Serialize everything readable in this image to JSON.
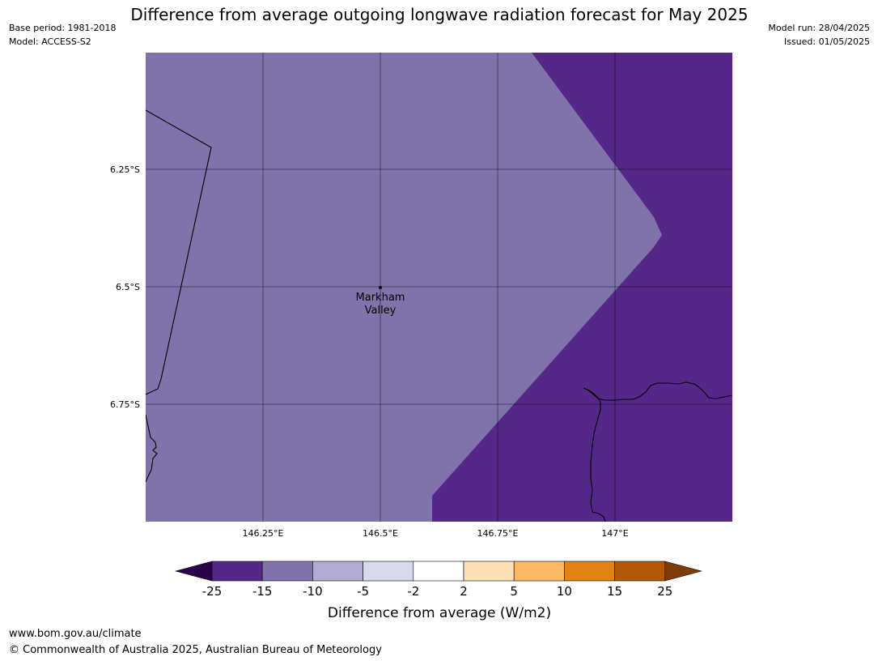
{
  "header": {
    "title": "Difference from average outgoing longwave radiation forecast for May 2025",
    "base_period": "Base period: 1981-2018",
    "model": "Model: ACCESS-S2",
    "model_run": "Model run: 28/04/2025",
    "issued": "Issued: 01/05/2025"
  },
  "map": {
    "lat_labels": [
      "6.25°S",
      "6.5°S",
      "6.75°S"
    ],
    "lon_labels": [
      "146.25°E",
      "146.5°E",
      "146.75°E",
      "147°E"
    ],
    "place": {
      "name_line1": "Markham",
      "name_line2": "Valley",
      "lon": 146.5,
      "lat": -6.5
    },
    "regions": [
      {
        "name": "region-minus10-to-minus15",
        "category": "-15 to -10",
        "color": "#8073ac"
      },
      {
        "name": "region-minus15-to-minus25",
        "category": "-25 to -15",
        "color": "#542788"
      }
    ]
  },
  "colorbar": {
    "label": "Difference from average (W/m2)",
    "ticks": [
      "-25",
      "-15",
      "-10",
      "-5",
      "-2",
      "2",
      "5",
      "10",
      "15",
      "25"
    ],
    "colors": [
      "#2d004b",
      "#542788",
      "#8073ac",
      "#b2abd2",
      "#d8daeb",
      "#ffffff",
      "#fee0b6",
      "#fdb863",
      "#e08214",
      "#b35806",
      "#7f3b08"
    ]
  },
  "footer": {
    "url": "www.bom.gov.au/climate",
    "copyright": "© Commonwealth of Australia 2025, Australian Bureau of Meteorology"
  }
}
